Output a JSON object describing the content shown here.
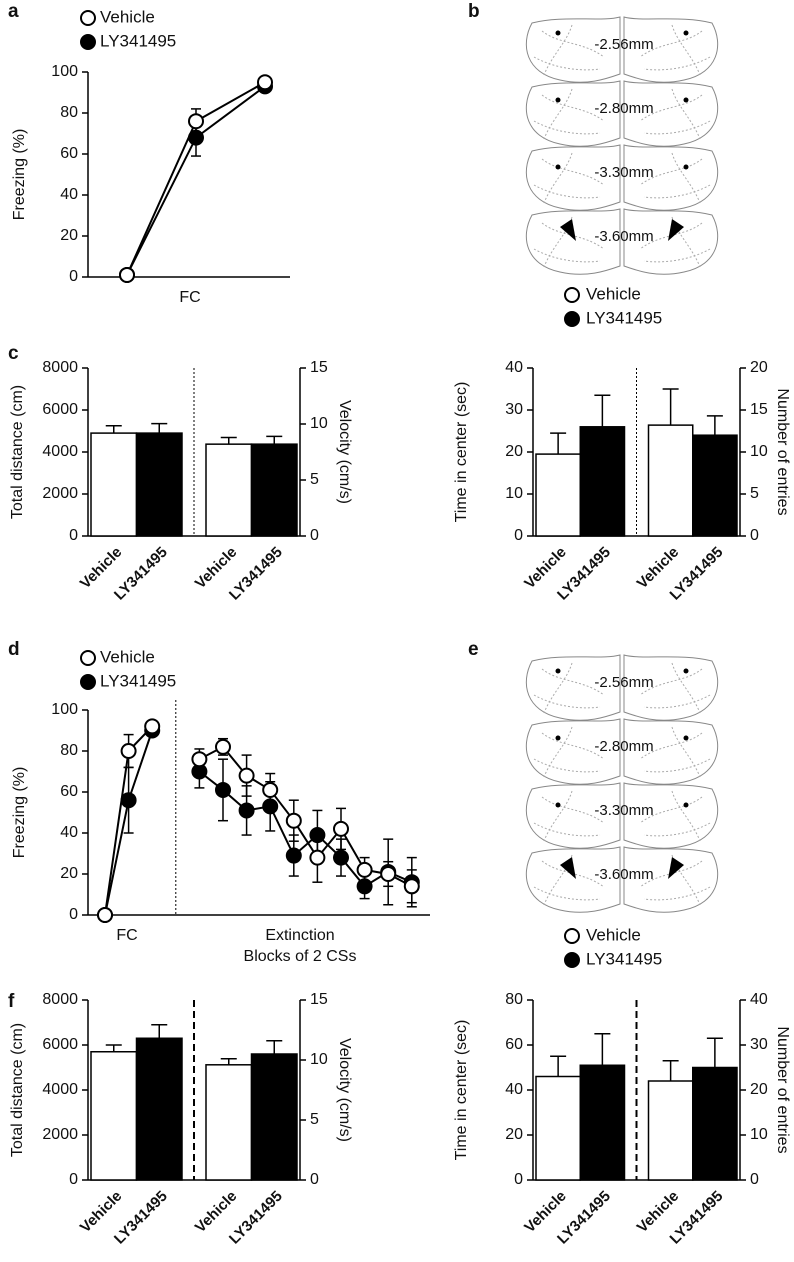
{
  "chart_data": [
    {
      "type": "line",
      "panel_label": "a",
      "ylabel": "Freezing (%)",
      "xlabel": "FC",
      "categories": [
        null,
        null,
        null
      ],
      "series": [
        {
          "name": "Vehicle",
          "color": "#000000",
          "marker_fill": "#ffffff",
          "values": [
            1,
            76,
            95
          ],
          "errors": [
            0,
            6,
            2
          ]
        },
        {
          "name": "LY341495",
          "color": "#000000",
          "marker_fill": "#000000",
          "values": [
            1,
            68,
            93
          ],
          "errors": [
            0,
            9,
            1
          ]
        }
      ],
      "ylim": [
        0,
        100
      ],
      "yticks": [
        0,
        20,
        40,
        60,
        80,
        100
      ]
    },
    {
      "type": "bar",
      "panel_label": "c",
      "ylabel": "Total distance (cm)",
      "y2label": "Velocity (cm/s)",
      "categories": [
        "Vehicle",
        "LY341495",
        "Vehicle",
        "LY341495"
      ],
      "colors": [
        "#ffffff",
        "#000000",
        "#ffffff",
        "#000000"
      ],
      "series": [
        {
          "values": [
            4900,
            4900,
            null,
            null
          ],
          "errors": [
            350,
            450,
            null,
            null
          ]
        },
        {
          "axis": "y2",
          "values": [
            null,
            null,
            8.2,
            8.2
          ],
          "errors": [
            null,
            null,
            0.6,
            0.7
          ]
        }
      ],
      "ylim": [
        0,
        8000
      ],
      "yticks": [
        0,
        2000,
        4000,
        6000,
        8000
      ],
      "y2lim": [
        0,
        15
      ],
      "y2ticks": [
        0,
        5,
        10,
        15
      ],
      "divider": "dotted"
    },
    {
      "type": "bar",
      "ylabel": "Time in center (sec)",
      "y2label": "Number of entries",
      "categories": [
        "Vehicle",
        "LY341495",
        "Vehicle",
        "LY341495"
      ],
      "colors": [
        "#ffffff",
        "#000000",
        "#ffffff",
        "#000000"
      ],
      "series": [
        {
          "values": [
            19.5,
            26,
            null,
            null
          ],
          "errors": [
            5,
            7.5,
            null,
            null
          ]
        },
        {
          "axis": "y2",
          "values": [
            null,
            null,
            13.2,
            12
          ],
          "errors": [
            null,
            null,
            4.3,
            2.3
          ]
        }
      ],
      "ylim": [
        0,
        40
      ],
      "yticks": [
        0,
        10,
        20,
        30,
        40
      ],
      "y2lim": [
        0,
        20
      ],
      "y2ticks": [
        0,
        5,
        10,
        15,
        20
      ],
      "divider": "dotted"
    },
    {
      "type": "line",
      "panel_label": "d",
      "ylabel": "Freezing (%)",
      "xlabel": "FC",
      "annotations": [
        "Extinction",
        "Blocks of 2 CSs"
      ],
      "categories": [
        null,
        null,
        null,
        null,
        null,
        null,
        null,
        null,
        null,
        null,
        null,
        null,
        null,
        null
      ],
      "series": [
        {
          "name": "Vehicle",
          "color": "#000000",
          "marker_fill": "#ffffff",
          "values": [
            0,
            80,
            92,
            null,
            76,
            82,
            68,
            61,
            46,
            28,
            42,
            22,
            20,
            14
          ],
          "errors": [
            0,
            8,
            2,
            null,
            5,
            4,
            10,
            8,
            10,
            12,
            10,
            6,
            6,
            8
          ]
        },
        {
          "name": "LY341495",
          "color": "#000000",
          "marker_fill": "#000000",
          "values": [
            0,
            56,
            90,
            null,
            70,
            61,
            51,
            53,
            29,
            39,
            28,
            14,
            21,
            16
          ],
          "errors": [
            0,
            16,
            2,
            null,
            8,
            15,
            12,
            12,
            10,
            12,
            9,
            6,
            16,
            12
          ]
        }
      ],
      "ylim": [
        0,
        100
      ],
      "yticks": [
        0,
        20,
        40,
        60,
        80,
        100
      ]
    },
    {
      "type": "bar",
      "panel_label": "f",
      "ylabel": "Total distance (cm)",
      "y2label": "Velocity (cm/s)",
      "categories": [
        "Vehicle",
        "LY341495",
        "Vehicle",
        "LY341495"
      ],
      "colors": [
        "#ffffff",
        "#000000",
        "#ffffff",
        "#000000"
      ],
      "series": [
        {
          "values": [
            5700,
            6300,
            null,
            null
          ],
          "errors": [
            300,
            600,
            null,
            null
          ]
        },
        {
          "axis": "y2",
          "values": [
            null,
            null,
            9.6,
            10.5
          ],
          "errors": [
            null,
            null,
            0.5,
            1.1
          ]
        }
      ],
      "ylim": [
        0,
        8000
      ],
      "yticks": [
        0,
        2000,
        4000,
        6000,
        8000
      ],
      "y2lim": [
        0,
        15
      ],
      "y2ticks": [
        0,
        5,
        10,
        15
      ],
      "divider": "dashed"
    },
    {
      "type": "bar",
      "ylabel": "Time in center (sec)",
      "y2label": "Number of entries",
      "categories": [
        "Vehicle",
        "LY341495",
        "Vehicle",
        "LY341495"
      ],
      "colors": [
        "#ffffff",
        "#000000",
        "#ffffff",
        "#000000"
      ],
      "series": [
        {
          "values": [
            46,
            51,
            null,
            null
          ],
          "errors": [
            9,
            14,
            null,
            null
          ]
        },
        {
          "axis": "y2",
          "values": [
            null,
            null,
            22,
            25
          ],
          "errors": [
            null,
            null,
            4.5,
            6.5
          ]
        }
      ],
      "ylim": [
        0,
        80
      ],
      "yticks": [
        0,
        20,
        40,
        60,
        80
      ],
      "y2lim": [
        0,
        40
      ],
      "y2ticks": [
        0,
        10,
        20,
        30,
        40
      ],
      "divider": "dashed"
    }
  ],
  "sections": [
    {
      "panel_label": "b",
      "levels": [
        "-2.56mm",
        "-2.80mm",
        "-3.30mm",
        "-3.60mm"
      ],
      "legend": [
        "Vehicle",
        "LY341495"
      ]
    },
    {
      "panel_label": "e",
      "levels": [
        "-2.56mm",
        "-2.80mm",
        "-3.30mm",
        "-3.60mm"
      ],
      "legend": [
        "Vehicle",
        "LY341495"
      ]
    }
  ]
}
